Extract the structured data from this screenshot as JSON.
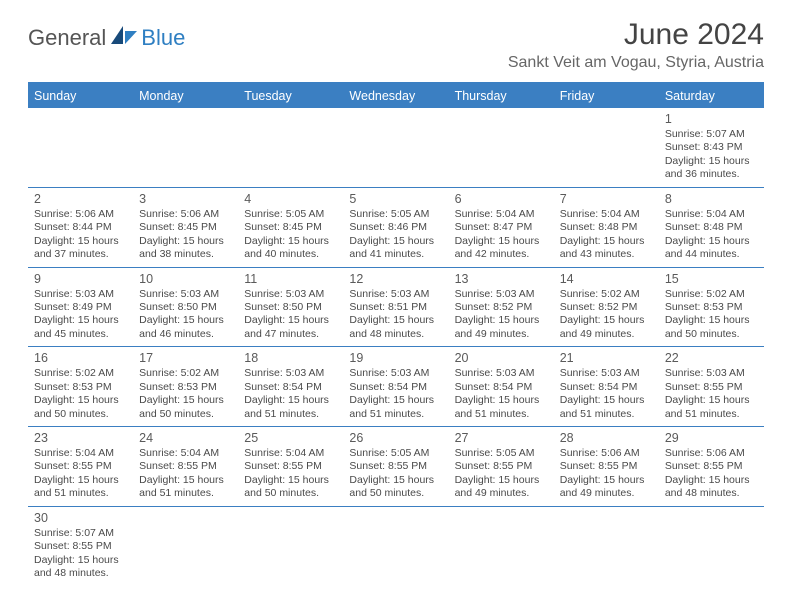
{
  "brand": {
    "part1": "General",
    "part2": "Blue"
  },
  "title": "June 2024",
  "location": "Sankt Veit am Vogau, Styria, Austria",
  "colors": {
    "accent": "#3b7fc2",
    "text": "#3a3a3a",
    "bg": "#ffffff"
  },
  "days_of_week": [
    "Sunday",
    "Monday",
    "Tuesday",
    "Wednesday",
    "Thursday",
    "Friday",
    "Saturday"
  ],
  "weeks": [
    [
      null,
      null,
      null,
      null,
      null,
      null,
      {
        "n": "1",
        "sr": "Sunrise: 5:07 AM",
        "ss": "Sunset: 8:43 PM",
        "d1": "Daylight: 15 hours",
        "d2": "and 36 minutes."
      }
    ],
    [
      {
        "n": "2",
        "sr": "Sunrise: 5:06 AM",
        "ss": "Sunset: 8:44 PM",
        "d1": "Daylight: 15 hours",
        "d2": "and 37 minutes."
      },
      {
        "n": "3",
        "sr": "Sunrise: 5:06 AM",
        "ss": "Sunset: 8:45 PM",
        "d1": "Daylight: 15 hours",
        "d2": "and 38 minutes."
      },
      {
        "n": "4",
        "sr": "Sunrise: 5:05 AM",
        "ss": "Sunset: 8:45 PM",
        "d1": "Daylight: 15 hours",
        "d2": "and 40 minutes."
      },
      {
        "n": "5",
        "sr": "Sunrise: 5:05 AM",
        "ss": "Sunset: 8:46 PM",
        "d1": "Daylight: 15 hours",
        "d2": "and 41 minutes."
      },
      {
        "n": "6",
        "sr": "Sunrise: 5:04 AM",
        "ss": "Sunset: 8:47 PM",
        "d1": "Daylight: 15 hours",
        "d2": "and 42 minutes."
      },
      {
        "n": "7",
        "sr": "Sunrise: 5:04 AM",
        "ss": "Sunset: 8:48 PM",
        "d1": "Daylight: 15 hours",
        "d2": "and 43 minutes."
      },
      {
        "n": "8",
        "sr": "Sunrise: 5:04 AM",
        "ss": "Sunset: 8:48 PM",
        "d1": "Daylight: 15 hours",
        "d2": "and 44 minutes."
      }
    ],
    [
      {
        "n": "9",
        "sr": "Sunrise: 5:03 AM",
        "ss": "Sunset: 8:49 PM",
        "d1": "Daylight: 15 hours",
        "d2": "and 45 minutes."
      },
      {
        "n": "10",
        "sr": "Sunrise: 5:03 AM",
        "ss": "Sunset: 8:50 PM",
        "d1": "Daylight: 15 hours",
        "d2": "and 46 minutes."
      },
      {
        "n": "11",
        "sr": "Sunrise: 5:03 AM",
        "ss": "Sunset: 8:50 PM",
        "d1": "Daylight: 15 hours",
        "d2": "and 47 minutes."
      },
      {
        "n": "12",
        "sr": "Sunrise: 5:03 AM",
        "ss": "Sunset: 8:51 PM",
        "d1": "Daylight: 15 hours",
        "d2": "and 48 minutes."
      },
      {
        "n": "13",
        "sr": "Sunrise: 5:03 AM",
        "ss": "Sunset: 8:52 PM",
        "d1": "Daylight: 15 hours",
        "d2": "and 49 minutes."
      },
      {
        "n": "14",
        "sr": "Sunrise: 5:02 AM",
        "ss": "Sunset: 8:52 PM",
        "d1": "Daylight: 15 hours",
        "d2": "and 49 minutes."
      },
      {
        "n": "15",
        "sr": "Sunrise: 5:02 AM",
        "ss": "Sunset: 8:53 PM",
        "d1": "Daylight: 15 hours",
        "d2": "and 50 minutes."
      }
    ],
    [
      {
        "n": "16",
        "sr": "Sunrise: 5:02 AM",
        "ss": "Sunset: 8:53 PM",
        "d1": "Daylight: 15 hours",
        "d2": "and 50 minutes."
      },
      {
        "n": "17",
        "sr": "Sunrise: 5:02 AM",
        "ss": "Sunset: 8:53 PM",
        "d1": "Daylight: 15 hours",
        "d2": "and 50 minutes."
      },
      {
        "n": "18",
        "sr": "Sunrise: 5:03 AM",
        "ss": "Sunset: 8:54 PM",
        "d1": "Daylight: 15 hours",
        "d2": "and 51 minutes."
      },
      {
        "n": "19",
        "sr": "Sunrise: 5:03 AM",
        "ss": "Sunset: 8:54 PM",
        "d1": "Daylight: 15 hours",
        "d2": "and 51 minutes."
      },
      {
        "n": "20",
        "sr": "Sunrise: 5:03 AM",
        "ss": "Sunset: 8:54 PM",
        "d1": "Daylight: 15 hours",
        "d2": "and 51 minutes."
      },
      {
        "n": "21",
        "sr": "Sunrise: 5:03 AM",
        "ss": "Sunset: 8:54 PM",
        "d1": "Daylight: 15 hours",
        "d2": "and 51 minutes."
      },
      {
        "n": "22",
        "sr": "Sunrise: 5:03 AM",
        "ss": "Sunset: 8:55 PM",
        "d1": "Daylight: 15 hours",
        "d2": "and 51 minutes."
      }
    ],
    [
      {
        "n": "23",
        "sr": "Sunrise: 5:04 AM",
        "ss": "Sunset: 8:55 PM",
        "d1": "Daylight: 15 hours",
        "d2": "and 51 minutes."
      },
      {
        "n": "24",
        "sr": "Sunrise: 5:04 AM",
        "ss": "Sunset: 8:55 PM",
        "d1": "Daylight: 15 hours",
        "d2": "and 51 minutes."
      },
      {
        "n": "25",
        "sr": "Sunrise: 5:04 AM",
        "ss": "Sunset: 8:55 PM",
        "d1": "Daylight: 15 hours",
        "d2": "and 50 minutes."
      },
      {
        "n": "26",
        "sr": "Sunrise: 5:05 AM",
        "ss": "Sunset: 8:55 PM",
        "d1": "Daylight: 15 hours",
        "d2": "and 50 minutes."
      },
      {
        "n": "27",
        "sr": "Sunrise: 5:05 AM",
        "ss": "Sunset: 8:55 PM",
        "d1": "Daylight: 15 hours",
        "d2": "and 49 minutes."
      },
      {
        "n": "28",
        "sr": "Sunrise: 5:06 AM",
        "ss": "Sunset: 8:55 PM",
        "d1": "Daylight: 15 hours",
        "d2": "and 49 minutes."
      },
      {
        "n": "29",
        "sr": "Sunrise: 5:06 AM",
        "ss": "Sunset: 8:55 PM",
        "d1": "Daylight: 15 hours",
        "d2": "and 48 minutes."
      }
    ],
    [
      {
        "n": "30",
        "sr": "Sunrise: 5:07 AM",
        "ss": "Sunset: 8:55 PM",
        "d1": "Daylight: 15 hours",
        "d2": "and 48 minutes."
      },
      null,
      null,
      null,
      null,
      null,
      null
    ]
  ]
}
